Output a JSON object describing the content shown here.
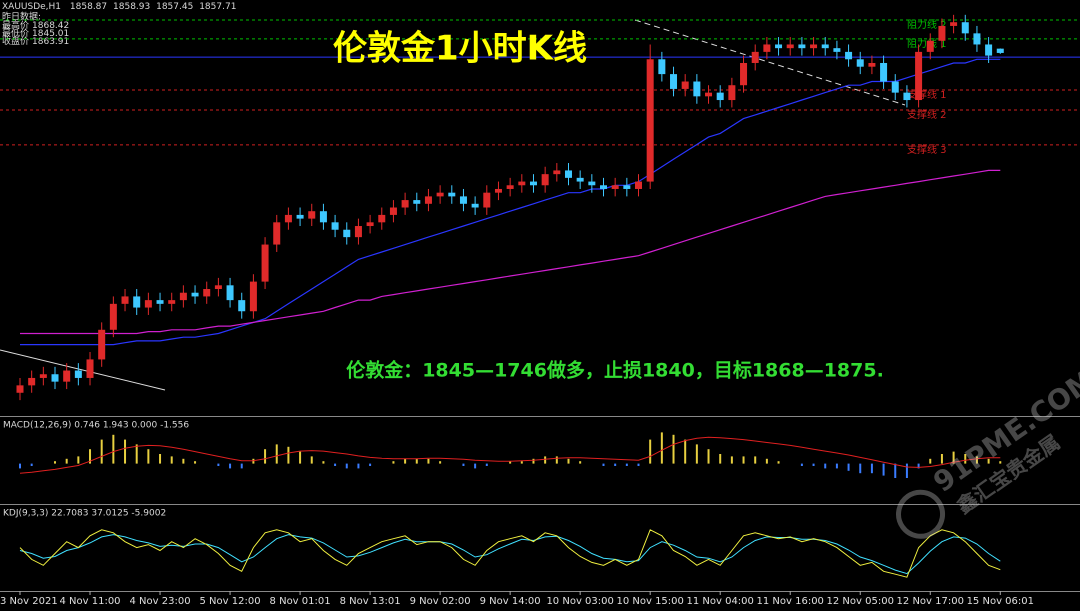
{
  "chart_data": [
    {
      "type": "candlestick",
      "title": "伦敦金1小时K线",
      "symbol": "XAUUSDe,H1",
      "annotation": "伦敦金：1845—1746做多，止损1840，目标1868—1875.",
      "yesterday": {
        "title": "昨日数据:",
        "items": [
          {
            "label": "最高价",
            "value": 1868.42
          },
          {
            "label": "最低价",
            "value": 1845.01
          },
          {
            "label": "收盘价",
            "value": 1863.91
          }
        ]
      },
      "categories": [
        "3 Nov 2021",
        null,
        null,
        null,
        null,
        null,
        "4 Nov 11:00",
        null,
        null,
        null,
        null,
        null,
        "4 Nov 23:00",
        null,
        null,
        null,
        null,
        null,
        "5 Nov 12:00",
        null,
        null,
        null,
        null,
        null,
        "8 Nov 01:01",
        null,
        null,
        null,
        null,
        null,
        "8 Nov 13:01",
        null,
        null,
        null,
        null,
        null,
        "9 Nov 02:00",
        null,
        null,
        null,
        null,
        null,
        "9 Nov 14:00",
        null,
        null,
        null,
        null,
        null,
        "10 Nov 03:00",
        null,
        null,
        null,
        null,
        null,
        "10 Nov 15:00",
        null,
        null,
        null,
        null,
        null,
        "11 Nov 04:00",
        null,
        null,
        null,
        null,
        null,
        "11 Nov 16:00",
        null,
        null,
        null,
        null,
        null,
        "12 Nov 05:00",
        null,
        null,
        null,
        null,
        null,
        "12 Nov 17:00",
        null,
        null,
        null,
        null,
        null,
        "15 Nov 06:01"
      ],
      "open": [
        1766,
        1768,
        1770,
        1771,
        1769,
        1772,
        1770,
        1775,
        1783,
        1790,
        1792,
        1789,
        1791,
        1790,
        1791,
        1793,
        1792,
        1794,
        1795,
        1791,
        1788,
        1796,
        1806,
        1812,
        1814,
        1813,
        1815,
        1812,
        1810,
        1808,
        1811,
        1812,
        1814,
        1816,
        1818,
        1817,
        1819,
        1820,
        1819,
        1817,
        1816,
        1820,
        1821,
        1822,
        1823,
        1822,
        1825,
        1826,
        1824,
        1823,
        1822,
        1821,
        1822,
        1821,
        1823,
        1856,
        1852,
        1848,
        1850,
        1846,
        1847,
        1845,
        1849,
        1855,
        1858,
        1860,
        1859,
        1860,
        1859,
        1860,
        1859,
        1858,
        1856,
        1854,
        1855,
        1850,
        1847,
        1845,
        1858,
        1861,
        1865,
        1866,
        1863,
        1860,
        1858.87
      ],
      "high": [
        1770,
        1772,
        1773,
        1773,
        1774,
        1774,
        1777,
        1785,
        1792,
        1794,
        1794,
        1793,
        1793,
        1793,
        1795,
        1795,
        1796,
        1797,
        1797,
        1793,
        1798,
        1808,
        1814,
        1816,
        1816,
        1817,
        1817,
        1814,
        1812,
        1813,
        1814,
        1816,
        1818,
        1820,
        1820,
        1821,
        1822,
        1822,
        1821,
        1819,
        1822,
        1823,
        1824,
        1825,
        1825,
        1827,
        1828,
        1828,
        1826,
        1825,
        1824,
        1824,
        1824,
        1825,
        1860,
        1858,
        1854,
        1852,
        1852,
        1849,
        1849,
        1851,
        1857,
        1860,
        1862,
        1862,
        1862,
        1862,
        1862,
        1862,
        1861,
        1860,
        1858,
        1857,
        1857,
        1852,
        1849,
        1860,
        1863,
        1867,
        1868,
        1868,
        1865,
        1862,
        1858.93
      ],
      "low": [
        1764,
        1766,
        1768,
        1767,
        1767,
        1768,
        1768,
        1773,
        1781,
        1788,
        1787,
        1787,
        1788,
        1788,
        1789,
        1790,
        1790,
        1792,
        1789,
        1786,
        1786,
        1794,
        1804,
        1810,
        1811,
        1811,
        1810,
        1808,
        1806,
        1806,
        1809,
        1810,
        1812,
        1814,
        1815,
        1815,
        1817,
        1817,
        1815,
        1814,
        1814,
        1818,
        1819,
        1820,
        1820,
        1820,
        1823,
        1822,
        1821,
        1820,
        1819,
        1819,
        1819,
        1819,
        1821,
        1850,
        1846,
        1846,
        1844,
        1844,
        1843,
        1843,
        1847,
        1853,
        1856,
        1857,
        1857,
        1857,
        1857,
        1857,
        1856,
        1854,
        1852,
        1852,
        1848,
        1845,
        1843,
        1843,
        1856,
        1859,
        1863,
        1861,
        1858,
        1855,
        1857.45
      ],
      "close": [
        1768,
        1770,
        1771,
        1769,
        1772,
        1770,
        1775,
        1783,
        1790,
        1792,
        1789,
        1791,
        1790,
        1791,
        1793,
        1792,
        1794,
        1795,
        1791,
        1788,
        1796,
        1806,
        1812,
        1814,
        1813,
        1815,
        1812,
        1810,
        1808,
        1811,
        1812,
        1814,
        1816,
        1818,
        1817,
        1819,
        1820,
        1819,
        1817,
        1816,
        1820,
        1821,
        1822,
        1823,
        1822,
        1825,
        1826,
        1824,
        1823,
        1822,
        1821,
        1822,
        1821,
        1823,
        1856,
        1852,
        1848,
        1850,
        1846,
        1847,
        1845,
        1849,
        1855,
        1858,
        1860,
        1859,
        1860,
        1859,
        1860,
        1859,
        1858,
        1856,
        1854,
        1855,
        1850,
        1847,
        1845,
        1858,
        1861,
        1865,
        1866,
        1863,
        1860,
        1857,
        1857.71
      ],
      "up_color": "#e02a2a",
      "down_color": "#3ec8ff",
      "ylim": [
        1760,
        1872
      ],
      "levels": [
        {
          "name": "阻力线 2",
          "value": 1866.6,
          "color": "#00c000"
        },
        {
          "name": "阻力线 1",
          "value": 1861.5,
          "color": "#00c000"
        },
        {
          "value": 1856.6,
          "color": "#2a36ff"
        },
        {
          "name": "支撑线 1",
          "value": 1847.7,
          "color": "#d02020"
        },
        {
          "name": "支撑线 2",
          "value": 1842.3,
          "color": "#d02020"
        },
        {
          "name": "支撑线 3",
          "value": 1832.9,
          "color": "#d02020"
        }
      ],
      "overlays": [
        {
          "color": "#2a36ff",
          "values": [
            1779,
            1779,
            1779,
            1779,
            1779,
            1779,
            1779,
            1779,
            1779,
            1779.5,
            1780,
            1780,
            1780,
            1780.5,
            1781,
            1781,
            1781.5,
            1782,
            1783,
            1784,
            1785,
            1786,
            1788,
            1790,
            1792,
            1794,
            1796,
            1798,
            1800,
            1802,
            1803,
            1804,
            1805,
            1806,
            1807,
            1808,
            1809,
            1810,
            1811,
            1812,
            1813,
            1814,
            1815,
            1816,
            1817,
            1818,
            1819,
            1820,
            1820,
            1821,
            1821,
            1822,
            1822,
            1823,
            1825,
            1827,
            1829,
            1831,
            1833,
            1835,
            1836,
            1838,
            1840,
            1841,
            1842,
            1843,
            1844,
            1845,
            1846,
            1847,
            1848,
            1849,
            1849,
            1850,
            1850,
            1850,
            1851,
            1852,
            1853,
            1854,
            1855,
            1855,
            1856,
            1856,
            1856
          ]
        },
        {
          "color": "#d020d0",
          "values": [
            1782,
            1782,
            1782,
            1782,
            1782,
            1782,
            1782,
            1782,
            1782,
            1782,
            1782,
            1782.5,
            1782.5,
            1783,
            1783,
            1783,
            1783.5,
            1784,
            1784,
            1784.5,
            1785,
            1785.5,
            1786,
            1786.5,
            1787,
            1787.5,
            1788,
            1789,
            1790,
            1791,
            1791,
            1792,
            1792.5,
            1793,
            1793.5,
            1794,
            1794.5,
            1795,
            1795.5,
            1796,
            1796.5,
            1797,
            1797.5,
            1798,
            1798.5,
            1799,
            1799.5,
            1800,
            1800.5,
            1801,
            1801.5,
            1802,
            1802.5,
            1803,
            1804,
            1805,
            1806,
            1807,
            1808,
            1809,
            1810,
            1811,
            1812,
            1813,
            1814,
            1815,
            1816,
            1817,
            1818,
            1819,
            1819.5,
            1820,
            1820.5,
            1821,
            1821.5,
            1822,
            1822.5,
            1823,
            1823.5,
            1824,
            1824.5,
            1825,
            1825.5,
            1826,
            1826
          ]
        }
      ],
      "watermark": [
        "91PME.COM",
        "鑫汇宝贵金属"
      ]
    },
    {
      "type": "macd",
      "label": "MACD(12,26,9) 0.746 1.943 0.000 -1.556",
      "ylim": [
        -8,
        7
      ],
      "hist_up_color": "#e8d040",
      "hist_down_color": "#3a7cff",
      "line_color": "#e02020",
      "histogram": [
        -1,
        -0.5,
        0,
        0.5,
        1,
        1.5,
        3,
        5,
        6,
        5,
        4,
        3,
        2,
        1.5,
        1,
        0.5,
        0,
        -0.5,
        -1,
        -1,
        1,
        3,
        4,
        3.5,
        2.5,
        1.5,
        0.5,
        -0.5,
        -1,
        -1,
        -0.5,
        0,
        0.5,
        1,
        1,
        1,
        0.5,
        0,
        -0.5,
        -1,
        -0.5,
        0,
        0.5,
        0.5,
        1,
        1.5,
        1.5,
        1,
        0.5,
        0,
        -0.5,
        -0.5,
        -0.5,
        -0.5,
        5,
        6.5,
        6,
        5,
        4,
        3,
        2,
        1.5,
        1.5,
        1.5,
        1,
        0.5,
        0,
        -0.5,
        -0.5,
        -1,
        -1,
        -1.5,
        -2,
        -2,
        -2.5,
        -3,
        -3,
        -1,
        1,
        2,
        2.5,
        2,
        1.5,
        1,
        0.5
      ],
      "signal": [
        -2,
        -1.8,
        -1.5,
        -1.2,
        -0.8,
        -0.4,
        0.5,
        1.5,
        2.5,
        3.2,
        3.6,
        3.8,
        3.7,
        3.4,
        3,
        2.5,
        2,
        1.5,
        1,
        0.6,
        0.6,
        1,
        1.6,
        2.2,
        2.6,
        2.7,
        2.6,
        2.3,
        2,
        1.6,
        1.3,
        1.1,
        1,
        1,
        1,
        1.1,
        1.1,
        1,
        0.9,
        0.7,
        0.6,
        0.5,
        0.5,
        0.6,
        0.7,
        0.9,
        1.1,
        1.2,
        1.2,
        1.1,
        1,
        0.9,
        0.8,
        0.7,
        1.5,
        2.8,
        4,
        4.8,
        5.3,
        5.5,
        5.4,
        5.2,
        5,
        4.7,
        4.4,
        4.1,
        3.8,
        3.4,
        3,
        2.6,
        2.2,
        1.8,
        1.3,
        0.8,
        0.3,
        -0.2,
        -0.7,
        -0.8,
        -0.6,
        -0.2,
        0.3,
        0.7,
        1,
        1.2,
        1.2
      ]
    },
    {
      "type": "kdj",
      "label": "KDJ(9,3,3) 22.7083 37.0125 -5.9002",
      "ylim": [
        -10,
        110
      ],
      "k_color": "#f0f040",
      "d_color": "#40e0ff",
      "k": [
        60,
        40,
        30,
        50,
        70,
        60,
        80,
        90,
        85,
        70,
        60,
        65,
        55,
        70,
        60,
        75,
        65,
        50,
        30,
        20,
        60,
        85,
        90,
        85,
        70,
        75,
        55,
        40,
        30,
        50,
        60,
        70,
        75,
        80,
        65,
        70,
        70,
        60,
        40,
        30,
        55,
        70,
        75,
        80,
        70,
        85,
        80,
        60,
        45,
        35,
        30,
        40,
        30,
        40,
        90,
        80,
        55,
        45,
        30,
        40,
        30,
        55,
        80,
        85,
        80,
        75,
        78,
        70,
        75,
        70,
        60,
        45,
        30,
        35,
        20,
        15,
        10,
        60,
        80,
        90,
        85,
        70,
        50,
        30,
        22.7
      ],
      "d": [
        55,
        50,
        42,
        45,
        55,
        60,
        68,
        78,
        82,
        78,
        72,
        68,
        62,
        64,
        62,
        66,
        66,
        60,
        48,
        36,
        44,
        60,
        75,
        82,
        78,
        76,
        68,
        56,
        44,
        46,
        52,
        60,
        68,
        74,
        70,
        70,
        70,
        66,
        56,
        44,
        48,
        58,
        66,
        74,
        72,
        78,
        79,
        72,
        62,
        50,
        42,
        40,
        36,
        38,
        60,
        70,
        64,
        55,
        44,
        42,
        36,
        44,
        60,
        72,
        78,
        77,
        77,
        74,
        74,
        72,
        66,
        56,
        44,
        38,
        30,
        22,
        16,
        34,
        54,
        70,
        78,
        76,
        66,
        50,
        37
      ]
    }
  ]
}
